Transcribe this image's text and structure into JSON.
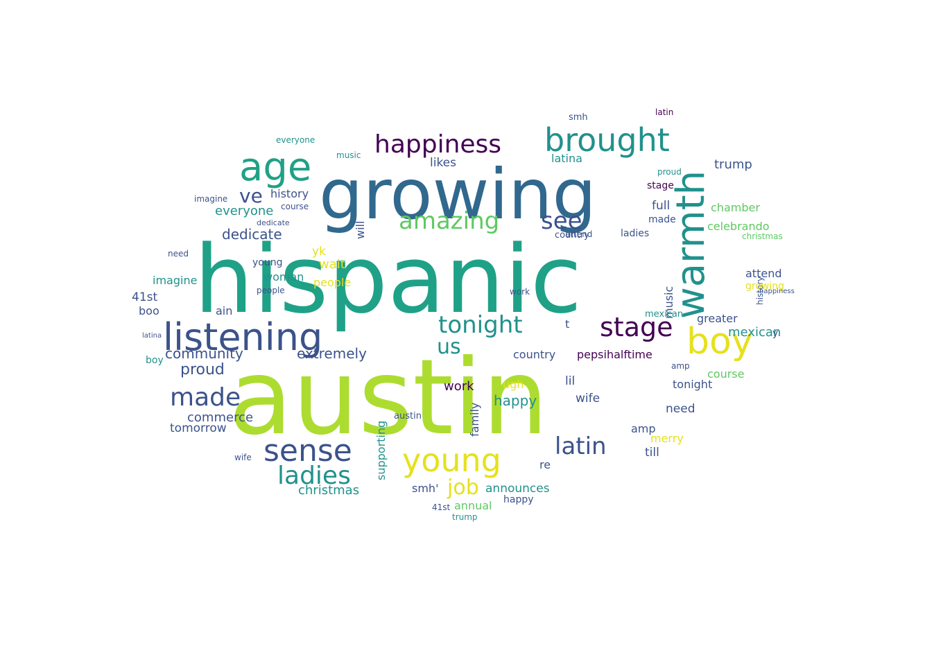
{
  "palette": {
    "background": "#ffffff",
    "dark_purple": "#440154",
    "indigo": "#3b528b",
    "steel_blue": "#31688e",
    "teal": "#21918c",
    "green_teal": "#1fa187",
    "green": "#5ec962",
    "lime": "#addc30",
    "yellow": "#e5e11d"
  },
  "words": {
    "w01": "austin",
    "w02": "hispanic",
    "w03": "growing",
    "w04": "listening",
    "w05": "brought",
    "w06": "warmth",
    "w07": "age",
    "w08": "happiness",
    "w09": "boy",
    "w10": "young",
    "w11": "sense",
    "w12": "stage",
    "w13": "tonight",
    "w14": "ladies",
    "w15": "amazing",
    "w16": "latin",
    "w17": "made",
    "w18": "see",
    "w19": "us",
    "w20": "ve",
    "w21": "job",
    "w22": "extremely",
    "w23": "community",
    "w24": "proud",
    "w25": "dedicate",
    "w26": "everyone",
    "w27": "history",
    "w28": "christmas",
    "w29": "announces",
    "w30": "happy",
    "w31": "mexican",
    "w32": "pepsihalftime",
    "w33": "trump",
    "w34": "country",
    "w35": "greater",
    "w36": "chamber",
    "w37": "celebrando",
    "w38": "music",
    "w39": "commerce",
    "w40": "tomorrow",
    "w41": "supporting",
    "w42": "woman",
    "w43": "people",
    "w44": "imagine",
    "w45": "wait",
    "w46": "likes",
    "w47": "latina",
    "w48": "attend",
    "w49": "full",
    "w50": "annual",
    "w51": "course",
    "w52": "work",
    "w53": "wife",
    "w54": "lil",
    "w55": "till",
    "w56": "need",
    "w57": "merry",
    "w58": "family",
    "w59": "41st",
    "w60": "boo",
    "w61": "ain",
    "w62": "will",
    "w63": "ugh",
    "w64": "yk",
    "w65": "smh'",
    "w66": "amp",
    "w67": "re",
    "w68": "t",
    "w69": "y",
    "w70": "smh",
    "w71": "wife",
    "w72": "proud",
    "w73": "young",
    "w74": "happy",
    "w75": "austin",
    "w76": "boy",
    "w77": "latin",
    "w78": "music",
    "w79": "stage",
    "w80": "history",
    "w81": "people",
    "w82": "ladies",
    "w83": "growing",
    "w84": "latina",
    "w85": "happiness",
    "w86": "imagine",
    "w87": "course",
    "w88": "tonight",
    "w89": "work",
    "w90": "dedicate",
    "w91": "christmas",
    "w92": "trump",
    "w93": "country",
    "w94": "attend",
    "w95": "everyone",
    "w96": "amp",
    "w97": "mexican",
    "w98": "need",
    "w99": "41st",
    "w100": "made"
  }
}
